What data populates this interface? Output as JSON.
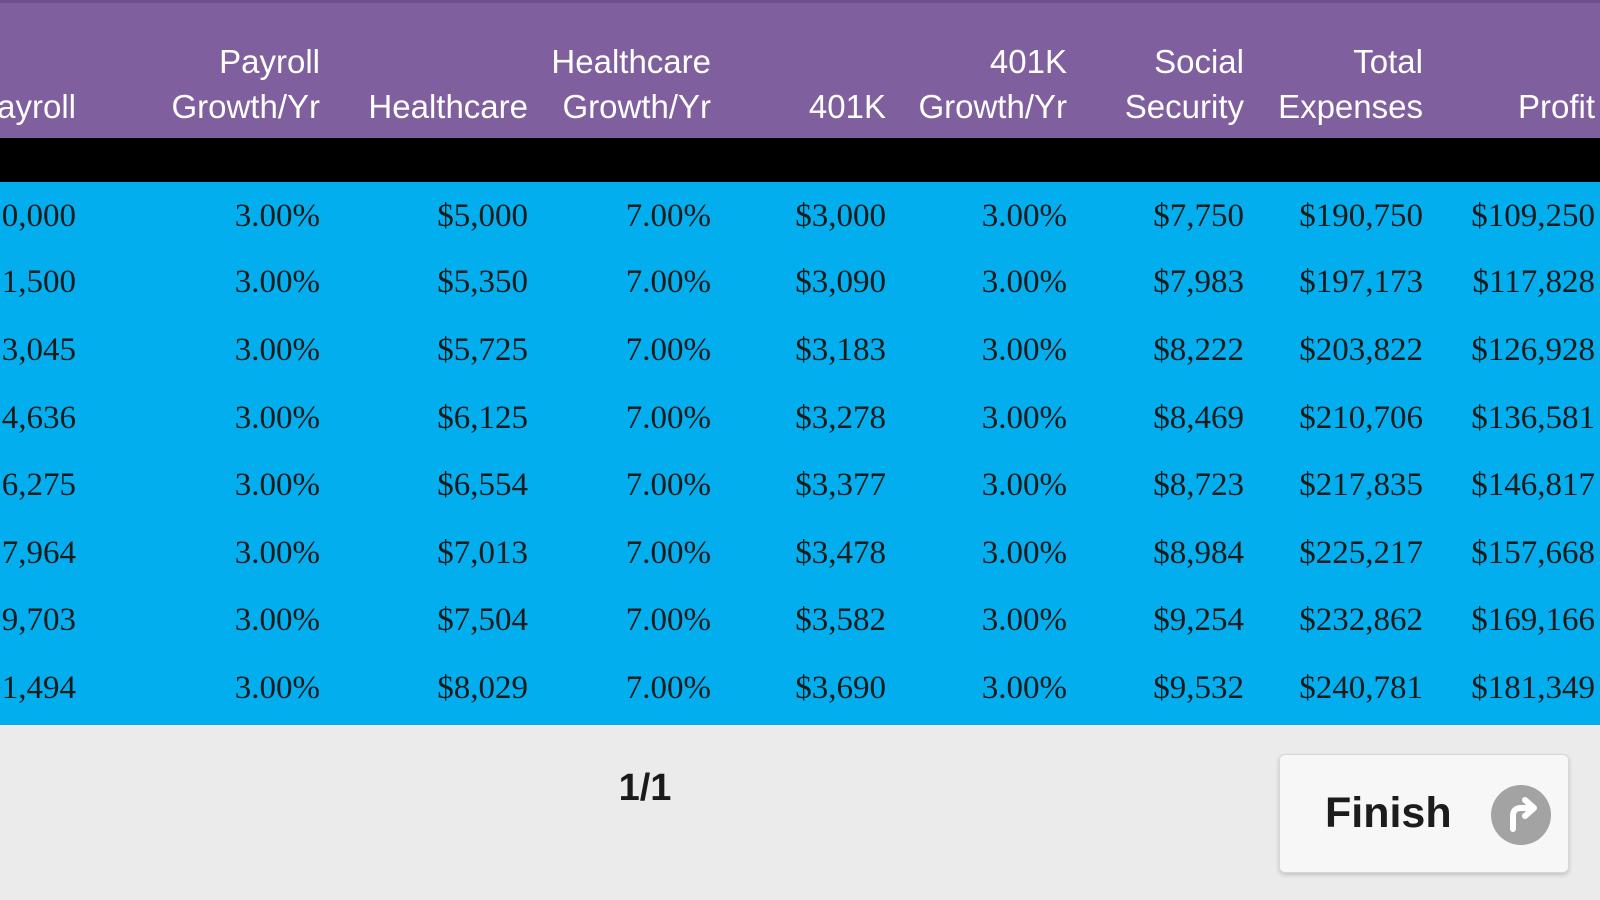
{
  "table": {
    "columns": [
      {
        "line1": "",
        "line2": "ayroll"
      },
      {
        "line1": "Payroll",
        "line2": "Growth/Yr"
      },
      {
        "line1": "",
        "line2": "Healthcare"
      },
      {
        "line1": "Healthcare",
        "line2": "Growth/Yr"
      },
      {
        "line1": "",
        "line2": "401K"
      },
      {
        "line1": "401K",
        "line2": "Growth/Yr"
      },
      {
        "line1": "Social",
        "line2": "Security"
      },
      {
        "line1": "Total",
        "line2": "Expenses"
      },
      {
        "line1": "",
        "line2": "Profit"
      }
    ],
    "rows": [
      [
        "0,000",
        "3.00%",
        "$5,000",
        "7.00%",
        "$3,000",
        "3.00%",
        "$7,750",
        "$190,750",
        "$109,250"
      ],
      [
        "1,500",
        "3.00%",
        "$5,350",
        "7.00%",
        "$3,090",
        "3.00%",
        "$7,983",
        "$197,173",
        "$117,828"
      ],
      [
        "3,045",
        "3.00%",
        "$5,725",
        "7.00%",
        "$3,183",
        "3.00%",
        "$8,222",
        "$203,822",
        "$126,928"
      ],
      [
        "4,636",
        "3.00%",
        "$6,125",
        "7.00%",
        "$3,278",
        "3.00%",
        "$8,469",
        "$210,706",
        "$136,581"
      ],
      [
        "6,275",
        "3.00%",
        "$6,554",
        "7.00%",
        "$3,377",
        "3.00%",
        "$8,723",
        "$217,835",
        "$146,817"
      ],
      [
        "7,964",
        "3.00%",
        "$7,013",
        "7.00%",
        "$3,478",
        "3.00%",
        "$8,984",
        "$225,217",
        "$157,668"
      ],
      [
        "9,703",
        "3.00%",
        "$7,504",
        "7.00%",
        "$3,582",
        "3.00%",
        "$9,254",
        "$232,862",
        "$169,166"
      ],
      [
        "1,494",
        "3.00%",
        "$8,029",
        "7.00%",
        "$3,690",
        "3.00%",
        "$9,532",
        "$240,781",
        "$181,349"
      ]
    ]
  },
  "footer": {
    "page_indicator": "1/1",
    "finish_label": "Finish",
    "finish_icon": "redo-arrow-icon"
  },
  "colors": {
    "header_bg": "#7f5f9d",
    "band_bg": "#000000",
    "body_bg": "#03aeef",
    "footer_bg": "#ebebeb"
  }
}
